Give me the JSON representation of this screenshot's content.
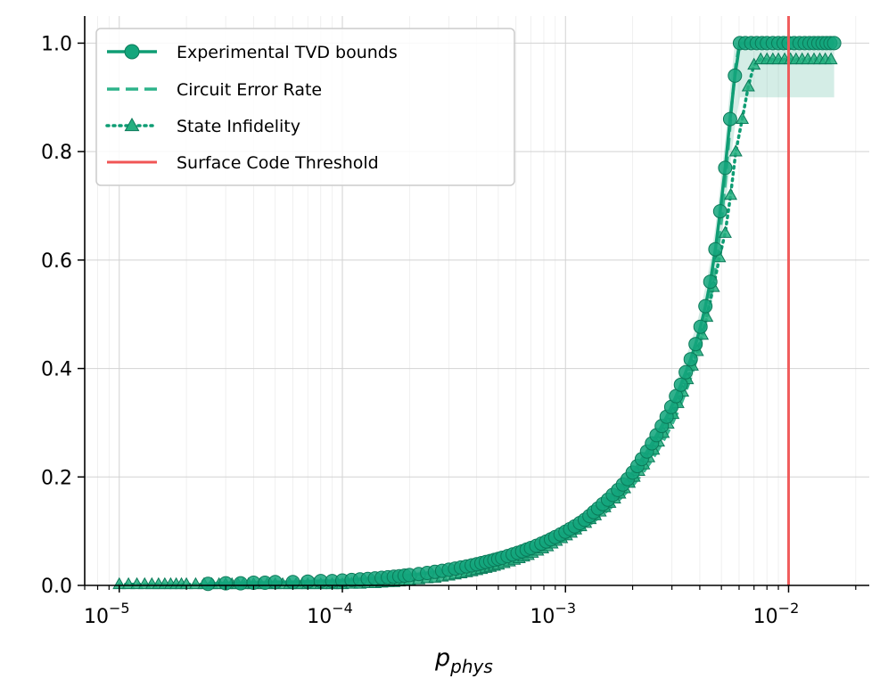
{
  "chart_data": {
    "type": "line",
    "title": "",
    "xlabel_main": "p",
    "xlabel_sub": "phys",
    "ylabel": "",
    "xscale": "log",
    "xlim": [
      7e-06,
      0.023
    ],
    "ylim": [
      0,
      1.05
    ],
    "grid": true,
    "legend_position": "upper-left",
    "x_ticks": [
      {
        "value": 1e-05,
        "base": "10",
        "exp": "−5"
      },
      {
        "value": 0.0001,
        "base": "10",
        "exp": "−4"
      },
      {
        "value": 0.001,
        "base": "10",
        "exp": "−3"
      },
      {
        "value": 0.01,
        "base": "10",
        "exp": "−2"
      }
    ],
    "y_ticks": [
      {
        "value": 0.0,
        "label": "0.0"
      },
      {
        "value": 0.2,
        "label": "0.2"
      },
      {
        "value": 0.4,
        "label": "0.4"
      },
      {
        "value": 0.6,
        "label": "0.6"
      },
      {
        "value": 0.8,
        "label": "0.8"
      },
      {
        "value": 1.0,
        "label": "1.0"
      }
    ],
    "series": [
      {
        "name": "Experimental TVD bounds",
        "style": "solid-circle",
        "color": "#0f9d74",
        "x": [
          2.5e-05,
          3e-05,
          3.5e-05,
          4e-05,
          4.5e-05,
          5e-05,
          6e-05,
          7e-05,
          8e-05,
          9e-05,
          0.0001,
          0.00011,
          0.00012,
          0.00013,
          0.00014,
          0.00015,
          0.00016,
          0.00017,
          0.00018,
          0.00019,
          0.0002,
          0.00022,
          0.00024,
          0.00026,
          0.00028,
          0.0003,
          0.00032,
          0.00034,
          0.00036,
          0.00038,
          0.0004,
          0.00042,
          0.00044,
          0.00046,
          0.00048,
          0.0005,
          0.00052,
          0.00055,
          0.00058,
          0.00061,
          0.00064,
          0.00067,
          0.0007,
          0.00074,
          0.00078,
          0.00082,
          0.00086,
          0.0009,
          0.00095,
          0.001,
          0.00105,
          0.0011,
          0.00116,
          0.00122,
          0.00128,
          0.00134,
          0.0014,
          0.00147,
          0.00155,
          0.00163,
          0.00172,
          0.00181,
          0.0019,
          0.002,
          0.0021,
          0.0022,
          0.00232,
          0.00244,
          0.00256,
          0.0027,
          0.00284,
          0.00298,
          0.00313,
          0.00329,
          0.00346,
          0.00364,
          0.00383,
          0.00403,
          0.00424,
          0.00446,
          0.0047,
          0.00494,
          0.0052,
          0.00547,
          0.00575,
          0.00605,
          0.0064,
          0.0068,
          0.0072,
          0.0076,
          0.008,
          0.0085,
          0.009,
          0.0095,
          0.01,
          0.0106,
          0.0112,
          0.0118,
          0.0124,
          0.013,
          0.0136,
          0.0142,
          0.0148,
          0.0154,
          0.016
        ],
        "y": [
          0.003,
          0.004,
          0.004,
          0.005,
          0.005,
          0.006,
          0.006,
          0.007,
          0.008,
          0.008,
          0.009,
          0.01,
          0.011,
          0.012,
          0.013,
          0.014,
          0.015,
          0.016,
          0.017,
          0.018,
          0.019,
          0.021,
          0.023,
          0.025,
          0.027,
          0.029,
          0.031,
          0.033,
          0.035,
          0.037,
          0.039,
          0.041,
          0.043,
          0.045,
          0.047,
          0.049,
          0.051,
          0.054,
          0.057,
          0.06,
          0.063,
          0.066,
          0.069,
          0.073,
          0.077,
          0.081,
          0.085,
          0.089,
          0.094,
          0.099,
          0.104,
          0.109,
          0.115,
          0.121,
          0.128,
          0.135,
          0.142,
          0.15,
          0.158,
          0.167,
          0.176,
          0.186,
          0.196,
          0.208,
          0.22,
          0.233,
          0.247,
          0.262,
          0.277,
          0.294,
          0.311,
          0.329,
          0.349,
          0.37,
          0.393,
          0.417,
          0.445,
          0.477,
          0.515,
          0.56,
          0.62,
          0.69,
          0.77,
          0.86,
          0.94,
          1.0,
          1.0,
          1.0,
          1.0,
          1.0,
          1.0,
          1.0,
          1.0,
          1.0,
          1.0,
          1.0,
          1.0,
          1.0,
          1.0,
          1.0,
          1.0,
          1.0,
          1.0,
          1.0,
          1.0
        ]
      },
      {
        "name": "Circuit Error Rate",
        "style": "dashed",
        "color": "#2db38a",
        "x": [
          0.00025,
          0.0003,
          0.00035,
          0.0004,
          0.00045,
          0.0005,
          0.00055,
          0.0006,
          0.00065,
          0.0007,
          0.0008,
          0.0009,
          0.001,
          0.0011,
          0.0012,
          0.0013,
          0.0014,
          0.0015,
          0.0016,
          0.0017,
          0.0018,
          0.0019,
          0.002,
          0.0022,
          0.0024,
          0.0026,
          0.0028,
          0.003,
          0.0032,
          0.0034,
          0.0036,
          0.0038,
          0.004,
          0.0042,
          0.0044,
          0.0046,
          0.0048,
          0.005,
          0.0052,
          0.0054,
          0.0056,
          0.0058,
          0.006,
          0.007,
          0.008,
          0.009,
          0.01,
          0.012,
          0.014,
          0.016
        ],
        "y": [
          0.02,
          0.025,
          0.03,
          0.035,
          0.039,
          0.043,
          0.047,
          0.051,
          0.055,
          0.059,
          0.067,
          0.076,
          0.085,
          0.094,
          0.104,
          0.114,
          0.124,
          0.134,
          0.144,
          0.154,
          0.164,
          0.174,
          0.184,
          0.205,
          0.227,
          0.25,
          0.273,
          0.297,
          0.322,
          0.349,
          0.377,
          0.407,
          0.44,
          0.477,
          0.517,
          0.563,
          0.615,
          0.674,
          0.742,
          0.82,
          0.9,
          0.96,
          0.995,
          1.0,
          1.0,
          1.0,
          1.0,
          1.0,
          1.0,
          1.0
        ]
      },
      {
        "name": "State Infidelity",
        "style": "dotted-triangle",
        "color": "#0f9d74",
        "x": [
          1e-05,
          1.1e-05,
          1.2e-05,
          1.3e-05,
          1.4e-05,
          1.5e-05,
          1.6e-05,
          1.7e-05,
          1.8e-05,
          1.9e-05,
          2e-05,
          2.2e-05,
          2.4e-05,
          2.6e-05,
          2.8e-05,
          3e-05,
          3.2e-05,
          3.4e-05,
          3.6e-05,
          3.8e-05,
          4e-05,
          4.3e-05,
          4.6e-05,
          5e-05,
          5.4e-05,
          5.8e-05,
          6.2e-05,
          6.6e-05,
          7e-05,
          7.5e-05,
          8e-05,
          8.5e-05,
          9e-05,
          9.5e-05,
          0.0001,
          0.00011,
          0.00012,
          0.00013,
          0.00014,
          0.00015,
          0.00016,
          0.00017,
          0.00018,
          0.00019,
          0.0002,
          0.00022,
          0.00024,
          0.00026,
          0.00028,
          0.0003,
          0.00032,
          0.00034,
          0.00036,
          0.00038,
          0.0004,
          0.00042,
          0.00044,
          0.00046,
          0.00048,
          0.0005,
          0.00053,
          0.00056,
          0.00059,
          0.00062,
          0.00065,
          0.00068,
          0.00071,
          0.00075,
          0.00079,
          0.00083,
          0.00087,
          0.00091,
          0.00096,
          0.00101,
          0.00106,
          0.00111,
          0.00117,
          0.00123,
          0.00129,
          0.00136,
          0.00143,
          0.0015,
          0.00158,
          0.00166,
          0.00175,
          0.00184,
          0.00193,
          0.00203,
          0.00213,
          0.00224,
          0.00236,
          0.00248,
          0.00261,
          0.00274,
          0.00288,
          0.00303,
          0.00319,
          0.00335,
          0.00352,
          0.0037,
          0.0039,
          0.0041,
          0.0043,
          0.0046,
          0.0049,
          0.0052,
          0.0055,
          0.0058,
          0.0062,
          0.0066,
          0.007,
          0.0075,
          0.008,
          0.0085,
          0.009,
          0.0096,
          0.0102,
          0.0108,
          0.0115,
          0.0122,
          0.013,
          0.0138,
          0.0146,
          0.0155
        ],
        "y": [
          0.002,
          0.002,
          0.002,
          0.002,
          0.002,
          0.002,
          0.002,
          0.002,
          0.002,
          0.002,
          0.002,
          0.002,
          0.002,
          0.002,
          0.002,
          0.002,
          0.002,
          0.002,
          0.002,
          0.002,
          0.002,
          0.002,
          0.002,
          0.002,
          0.002,
          0.002,
          0.002,
          0.002,
          0.002,
          0.002,
          0.002,
          0.002,
          0.002,
          0.002,
          0.002,
          0.003,
          0.003,
          0.004,
          0.004,
          0.005,
          0.006,
          0.006,
          0.007,
          0.008,
          0.009,
          0.011,
          0.013,
          0.014,
          0.016,
          0.018,
          0.02,
          0.022,
          0.024,
          0.026,
          0.028,
          0.03,
          0.032,
          0.034,
          0.036,
          0.038,
          0.041,
          0.044,
          0.047,
          0.05,
          0.053,
          0.056,
          0.06,
          0.064,
          0.068,
          0.072,
          0.077,
          0.082,
          0.087,
          0.092,
          0.097,
          0.103,
          0.109,
          0.115,
          0.122,
          0.129,
          0.136,
          0.144,
          0.152,
          0.16,
          0.169,
          0.179,
          0.189,
          0.2,
          0.211,
          0.223,
          0.236,
          0.25,
          0.265,
          0.281,
          0.298,
          0.316,
          0.336,
          0.357,
          0.38,
          0.405,
          0.432,
          0.462,
          0.495,
          0.55,
          0.605,
          0.65,
          0.72,
          0.8,
          0.86,
          0.92,
          0.96,
          0.97,
          0.97,
          0.97,
          0.97,
          0.97,
          0.97,
          0.97,
          0.97,
          0.97,
          0.97,
          0.97,
          0.97,
          0.97
        ]
      },
      {
        "name": "Surface Code Threshold",
        "style": "vline",
        "color": "#f05555",
        "x": [
          0.01
        ]
      }
    ]
  }
}
